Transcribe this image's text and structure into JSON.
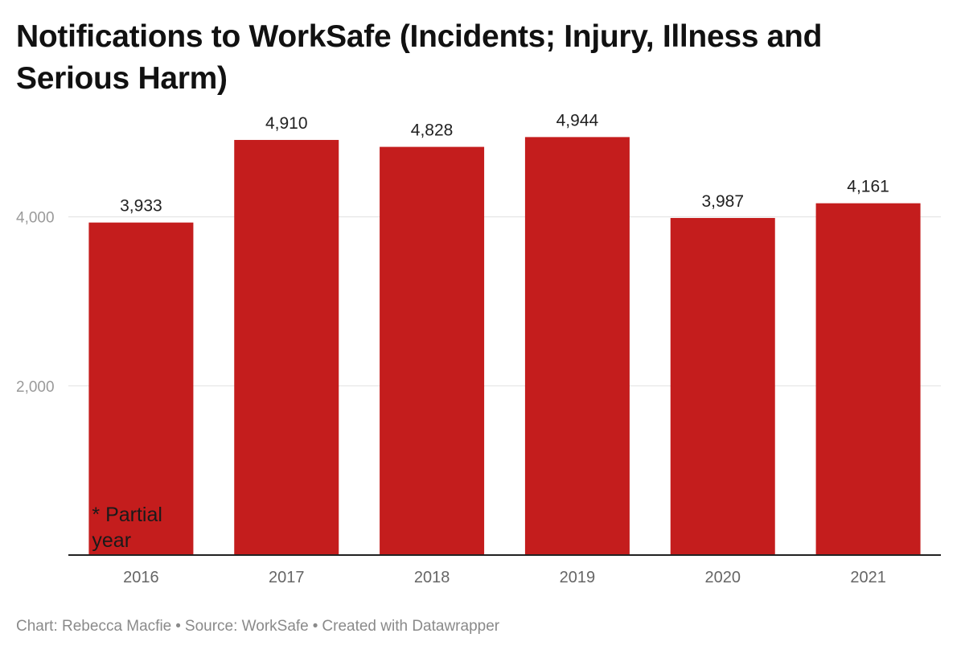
{
  "chart_data": {
    "type": "bar",
    "title": "Notifications to WorkSafe (Incidents; Injury, Illness and Serious Harm)",
    "categories": [
      "2016",
      "2017",
      "2018",
      "2019",
      "2020",
      "2021"
    ],
    "values": [
      3933,
      4910,
      4828,
      4944,
      3987,
      4161
    ],
    "value_labels": [
      "3,933",
      "4,910",
      "4,828",
      "4,944",
      "3,987",
      "4,161"
    ],
    "yticks": [
      2000,
      4000
    ],
    "ytick_labels": [
      "2,000",
      "4,000"
    ],
    "ylim": [
      0,
      5300
    ],
    "grid": true,
    "bar_color": "#c41d1d",
    "annotation": {
      "lines": [
        "* Partial",
        "year"
      ],
      "category": "2016"
    }
  },
  "footer": {
    "chart_credit": "Chart: Rebecca Macfie",
    "source": "Source: WorkSafe",
    "tool": "Created with Datawrapper",
    "separator": "•"
  }
}
